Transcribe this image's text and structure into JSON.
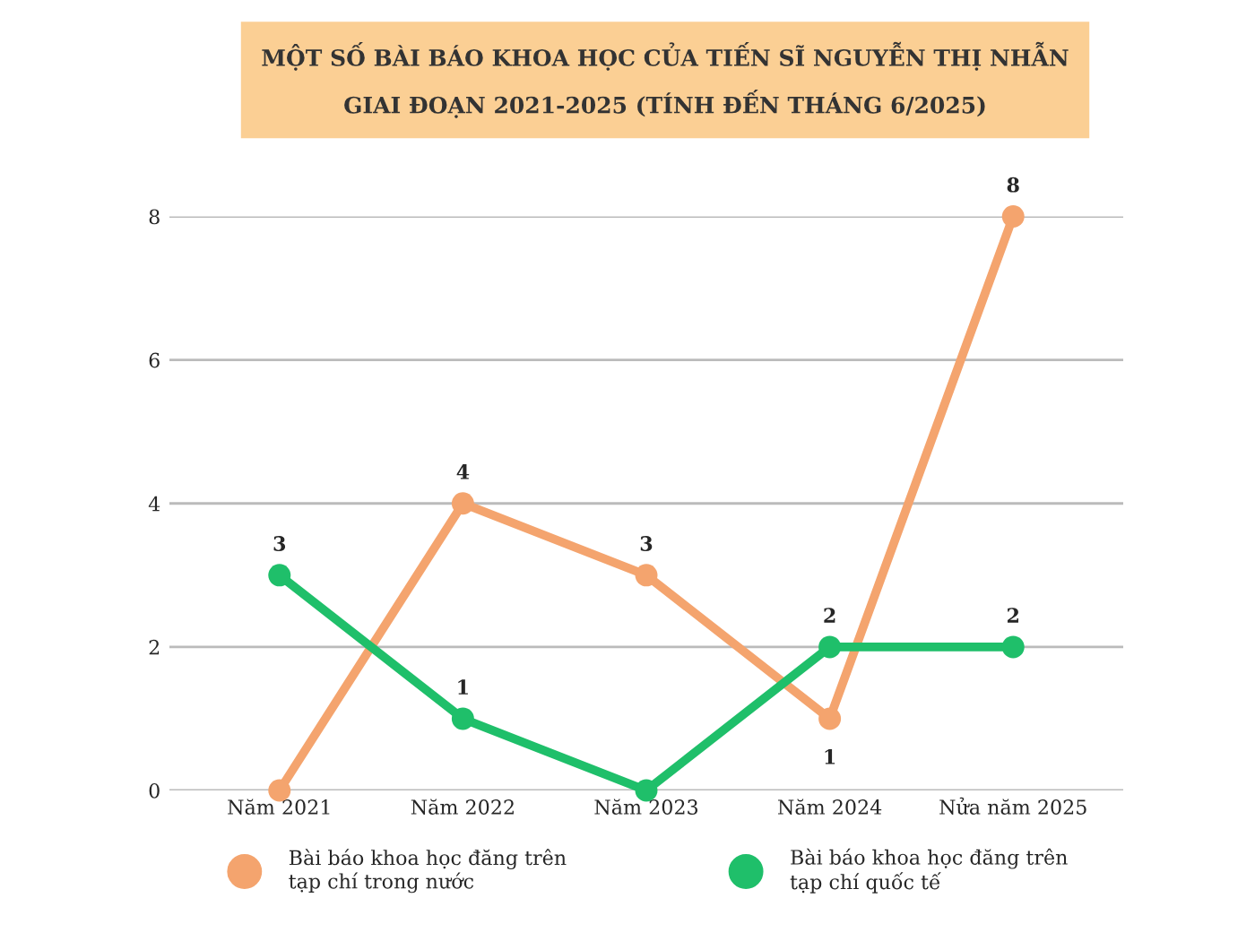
{
  "chart_data": {
    "type": "line",
    "title": "MỘT SỐ BÀI BÁO KHOA HỌC CỦA TIẾN SĨ NGUYỄN THỊ NHẪN\nGIAI ĐOẠN 2021-2025 (TÍNH ĐẾN THÁNG 6/2025)",
    "categories": [
      "Năm 2021",
      "Năm 2022",
      "Năm 2023",
      "Năm 2024",
      "Nửa năm 2025"
    ],
    "series": [
      {
        "name": "Bài báo khoa học đăng trên\ntạp chí trong nước",
        "color": "#f4a46e",
        "values": [
          0,
          4,
          3,
          1,
          8
        ],
        "value_labels": [
          null,
          "4",
          "3",
          "1",
          "8"
        ]
      },
      {
        "name": "Bài báo khoa học đăng trên\ntạp chí quốc tế",
        "color": "#1fbf6a",
        "values": [
          3,
          1,
          0,
          2,
          2
        ],
        "value_labels": [
          "3",
          "1",
          null,
          "2",
          "2"
        ]
      }
    ],
    "ylim": [
      0,
      8
    ],
    "yticks": [
      0,
      2,
      4,
      6,
      8
    ],
    "grid": "y",
    "legend": "bottom",
    "marker": "circle",
    "line_style": "solid"
  }
}
